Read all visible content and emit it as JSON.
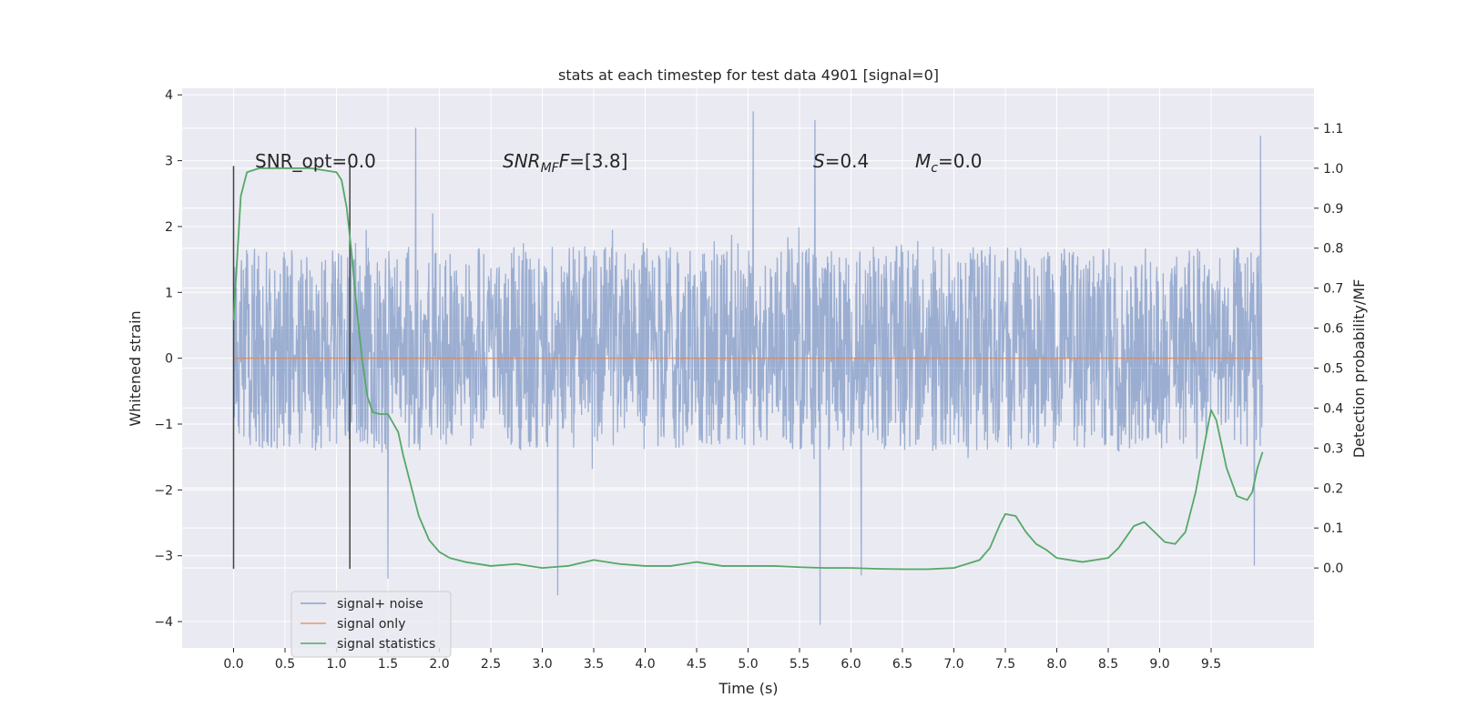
{
  "chart_data": {
    "type": "line",
    "title": "stats at each timestep for test data 4901 [signal=0]",
    "xlabel": "Time (s)",
    "ylabel": "Whitened strain",
    "y2label": "Detection probability/MF",
    "xlim": [
      -0.5,
      10.5
    ],
    "ylim": [
      -4.4,
      4.1
    ],
    "y2lim": [
      -0.2,
      1.2
    ],
    "x_ticks": [
      "0.0",
      "0.5",
      "1.0",
      "1.5",
      "2.0",
      "2.5",
      "3.0",
      "3.5",
      "4.0",
      "4.5",
      "5.0",
      "5.5",
      "6.0",
      "6.5",
      "7.0",
      "7.5",
      "8.0",
      "8.5",
      "9.0",
      "9.5"
    ],
    "y_ticks": [
      "4",
      "3",
      "2",
      "1",
      "0",
      "−1",
      "−2",
      "−3",
      "−4"
    ],
    "y2_ticks": [
      "1.1",
      "1.0",
      "0.9",
      "0.8",
      "0.7",
      "0.6",
      "0.5",
      "0.4",
      "0.3",
      "0.2",
      "0.1",
      "0.0"
    ],
    "grid": true,
    "legend_position": "lower-left",
    "colors": {
      "background": "#eaeaf2",
      "grid": "#ffffff",
      "noise": "#4c72b0",
      "signal": "#dd8452",
      "stats": "#55a868",
      "vline": "#444444"
    },
    "annotations": {
      "snr_opt": "SNR_opt=0.0",
      "snr_mf_main": "SNR",
      "snr_mf_sub": "MF",
      "snr_mf_rest": "=[3.8]",
      "s_main": "S",
      "s_rest": "=0.4",
      "mc_main": "M",
      "mc_sub": "c",
      "mc_rest": "=0.0"
    },
    "vertical_lines_x": [
      0.0,
      1.13
    ],
    "series": [
      {
        "name": "signal+ noise",
        "kind": "noise",
        "x_range": [
          0.0,
          10.0
        ],
        "core_range": [
          -1.4,
          1.7
        ],
        "extremes": [
          {
            "x": 5.05,
            "y": 3.75
          },
          {
            "x": 5.65,
            "y": 3.62
          },
          {
            "x": 1.77,
            "y": 3.5
          },
          {
            "x": 9.98,
            "y": 3.38
          },
          {
            "x": 5.7,
            "y": -4.05
          },
          {
            "x": 3.15,
            "y": -3.6
          },
          {
            "x": 1.5,
            "y": -3.35
          },
          {
            "x": 6.1,
            "y": -3.3
          },
          {
            "x": 9.92,
            "y": -3.15
          }
        ]
      },
      {
        "name": "signal only",
        "kind": "flat",
        "x": [
          0.0,
          10.0
        ],
        "y": [
          0.0,
          0.0
        ]
      },
      {
        "name": "signal statistics",
        "kind": "line",
        "axis": "right",
        "x": [
          0.0,
          0.07,
          0.13,
          0.25,
          0.5,
          0.75,
          1.0,
          1.05,
          1.1,
          1.15,
          1.2,
          1.25,
          1.3,
          1.35,
          1.42,
          1.5,
          1.6,
          1.65,
          1.72,
          1.8,
          1.9,
          2.0,
          2.1,
          2.25,
          2.5,
          2.75,
          3.0,
          3.25,
          3.5,
          3.75,
          4.0,
          4.25,
          4.5,
          4.75,
          5.0,
          5.25,
          5.5,
          5.75,
          6.0,
          6.25,
          6.5,
          6.75,
          7.0,
          7.25,
          7.35,
          7.45,
          7.5,
          7.6,
          7.7,
          7.8,
          7.9,
          8.0,
          8.25,
          8.5,
          8.6,
          8.75,
          8.85,
          8.95,
          9.05,
          9.15,
          9.25,
          9.35,
          9.45,
          9.5,
          9.55,
          9.65,
          9.75,
          9.85,
          9.9,
          9.95,
          10.0
        ],
        "y": [
          0.62,
          0.93,
          0.99,
          1.0,
          1.0,
          1.0,
          0.99,
          0.97,
          0.9,
          0.78,
          0.64,
          0.52,
          0.43,
          0.39,
          0.385,
          0.385,
          0.34,
          0.28,
          0.21,
          0.13,
          0.07,
          0.04,
          0.025,
          0.015,
          0.005,
          0.01,
          0.0,
          0.005,
          0.02,
          0.01,
          0.005,
          0.005,
          0.015,
          0.005,
          0.005,
          0.005,
          0.002,
          0.0,
          0.0,
          -0.002,
          -0.003,
          -0.003,
          0.0,
          0.02,
          0.05,
          0.11,
          0.135,
          0.13,
          0.09,
          0.06,
          0.045,
          0.025,
          0.015,
          0.025,
          0.05,
          0.105,
          0.115,
          0.09,
          0.065,
          0.06,
          0.09,
          0.19,
          0.33,
          0.395,
          0.37,
          0.25,
          0.18,
          0.17,
          0.19,
          0.25,
          0.29
        ]
      }
    ]
  }
}
